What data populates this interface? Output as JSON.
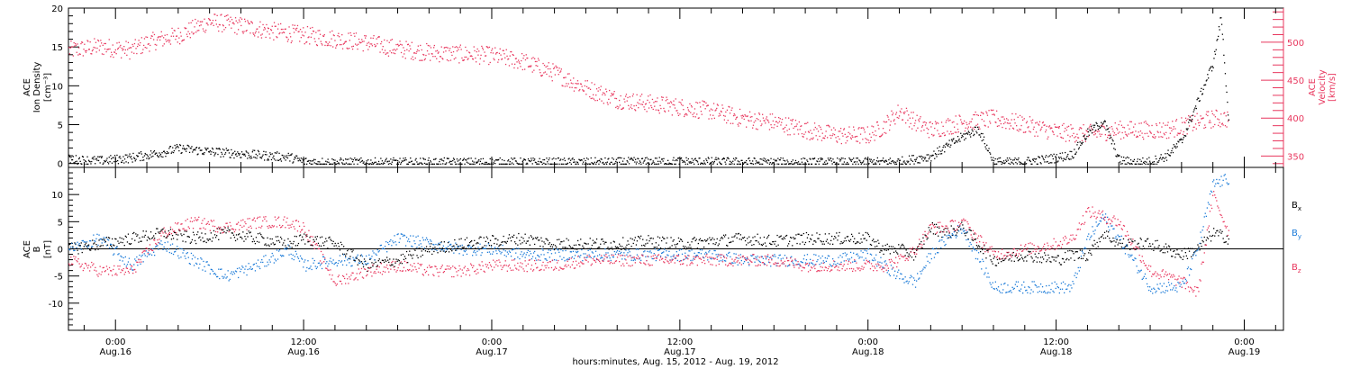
{
  "figure": {
    "xaxis_title": "hours:minutes, Aug. 15, 2012 - Aug. 19, 2012",
    "tick_labels": [
      {
        "time": "0:00",
        "date": "Aug.16",
        "hour": 0
      },
      {
        "time": "12:00",
        "date": "Aug.16",
        "hour": 12
      },
      {
        "time": "0:00",
        "date": "Aug.17",
        "hour": 24
      },
      {
        "time": "12:00",
        "date": "Aug.17",
        "hour": 36
      },
      {
        "time": "0:00",
        "date": "Aug.18",
        "hour": 48
      },
      {
        "time": "12:00",
        "date": "Aug.18",
        "hour": 60
      },
      {
        "time": "0:00",
        "date": "Aug.19",
        "hour": 72
      }
    ]
  },
  "colors": {
    "black": "#000000",
    "velocity": "#e8375e",
    "by": "#1a7ad8",
    "bz": "#e8375e"
  },
  "chart_data": [
    {
      "type": "scatter",
      "panel": "top",
      "left_label_lines": [
        "ACE",
        "Ion Density",
        "[cm⁻³]"
      ],
      "right_label_lines": [
        "ACE",
        "Velocity",
        "[km/s]"
      ],
      "x_units": "hours from Aug. 16 0:00",
      "xlim": [
        -3,
        74.5
      ],
      "ylim_left": [
        -0.5,
        20
      ],
      "yticks_left": [
        0,
        5,
        10,
        15,
        20
      ],
      "ylim_right": [
        335,
        545
      ],
      "yticks_right": [
        350,
        400,
        450,
        500
      ],
      "series": [
        {
          "axis": "left",
          "color": "black",
          "x": [
            -3,
            -1,
            1,
            3,
            4,
            5,
            6,
            8,
            10,
            11,
            12,
            14,
            18,
            24,
            30,
            36,
            42,
            48,
            50,
            52,
            54,
            55,
            56,
            57,
            58,
            59,
            60,
            61,
            62,
            63,
            64,
            65,
            66,
            67,
            68,
            69,
            70,
            70.5,
            71
          ],
          "y": [
            0.6,
            0.4,
            0.8,
            1.5,
            2.0,
            1.8,
            1.6,
            1.3,
            1.0,
            0.9,
            0.3,
            0.2,
            0.2,
            0.2,
            0.2,
            0.3,
            0.2,
            0.2,
            0.3,
            1.0,
            3.5,
            4.5,
            0.3,
            0.2,
            0.3,
            0.5,
            0.8,
            1.2,
            4.0,
            5.5,
            0.5,
            0.2,
            0.3,
            1.0,
            3.0,
            8.0,
            13.0,
            19.0,
            5.0
          ]
        },
        {
          "axis": "right",
          "color": "velocity",
          "x": [
            -3,
            -1,
            1,
            2,
            4,
            6,
            8,
            10,
            12,
            14,
            16,
            18,
            20,
            22,
            24,
            26,
            28,
            30,
            32,
            34,
            36,
            38,
            40,
            42,
            44,
            46,
            48,
            49,
            50,
            51,
            52,
            54,
            56,
            58,
            60,
            62,
            64,
            66,
            67,
            68,
            69,
            70,
            71
          ],
          "y": [
            490,
            495,
            490,
            500,
            510,
            528,
            522,
            515,
            510,
            505,
            500,
            492,
            487,
            485,
            483,
            475,
            460,
            440,
            425,
            420,
            415,
            410,
            400,
            395,
            385,
            378,
            378,
            390,
            410,
            395,
            385,
            395,
            400,
            392,
            382,
            380,
            385,
            385,
            385,
            390,
            395,
            400,
            400
          ]
        }
      ]
    },
    {
      "type": "scatter",
      "panel": "bottom",
      "left_label_lines": [
        "ACE",
        "B",
        "[nT]"
      ],
      "x_units": "hours from Aug. 16 0:00",
      "xlim": [
        -3,
        74.5
      ],
      "ylim": [
        -15,
        15
      ],
      "yticks": [
        -10,
        -5,
        0,
        5,
        10
      ],
      "series": [
        {
          "name": "Bx",
          "color": "black",
          "x": [
            -3,
            -1,
            1,
            3,
            5,
            7,
            9,
            11,
            12,
            14,
            15,
            16,
            18,
            20,
            22,
            24,
            26,
            28,
            30,
            32,
            34,
            36,
            38,
            40,
            42,
            44,
            46,
            48,
            49,
            50,
            51,
            52,
            53,
            54,
            56,
            58,
            60,
            61,
            62,
            63,
            64,
            66,
            68,
            69,
            70,
            71
          ],
          "y": [
            0,
            1,
            2,
            3,
            2,
            3,
            2,
            1,
            2,
            1,
            -1,
            -3,
            -2,
            0,
            1,
            1.5,
            2,
            1,
            1,
            1,
            1.5,
            1,
            1.5,
            2,
            1.5,
            2,
            2,
            2,
            0,
            0,
            -1,
            4,
            3,
            4,
            -2,
            -1,
            -2,
            -1,
            -1,
            3,
            1,
            1,
            -1,
            0,
            3,
            2
          ]
        },
        {
          "name": "By",
          "color": "by",
          "x": [
            -3,
            -1,
            1,
            3,
            5,
            7,
            9,
            11,
            12,
            14,
            15,
            16,
            18,
            20,
            22,
            24,
            26,
            28,
            30,
            32,
            34,
            36,
            38,
            40,
            42,
            44,
            46,
            48,
            49,
            50,
            51,
            52,
            53,
            54,
            56,
            58,
            60,
            61,
            62,
            63,
            64,
            66,
            68,
            69,
            70,
            71
          ],
          "y": [
            0,
            2,
            -3,
            1,
            -2,
            -5,
            -3,
            0,
            -3,
            -2,
            -2,
            -2,
            2,
            1,
            0,
            0,
            -1,
            -1,
            -1,
            -1,
            -1,
            -1,
            -1,
            -2,
            -2,
            -2,
            -2,
            -1,
            -3,
            -5,
            -6,
            -1,
            2,
            4,
            -7,
            -7,
            -7,
            -7,
            2,
            6,
            2,
            -7,
            -7,
            0,
            12,
            13
          ]
        },
        {
          "name": "Bz",
          "color": "bz",
          "x": [
            -3,
            -1,
            1,
            3,
            5,
            7,
            9,
            11,
            12,
            14,
            15,
            16,
            18,
            20,
            22,
            24,
            26,
            28,
            30,
            32,
            34,
            36,
            38,
            40,
            42,
            44,
            46,
            48,
            49,
            50,
            51,
            52,
            53,
            54,
            56,
            58,
            60,
            61,
            62,
            63,
            64,
            66,
            68,
            69,
            70,
            71
          ],
          "y": [
            -2,
            -4,
            -4,
            3,
            5,
            4,
            5,
            5,
            4,
            -6,
            -5,
            -4,
            -3,
            -4,
            -4,
            -3,
            -3,
            -3,
            -2,
            -2,
            -2,
            -2,
            -2,
            -2,
            -2,
            -3,
            -3,
            -3,
            -3,
            -2,
            0,
            4,
            4,
            5,
            -1,
            0,
            1,
            2,
            7,
            6,
            5,
            -4,
            -6,
            -8,
            10,
            3
          ]
        }
      ]
    }
  ]
}
